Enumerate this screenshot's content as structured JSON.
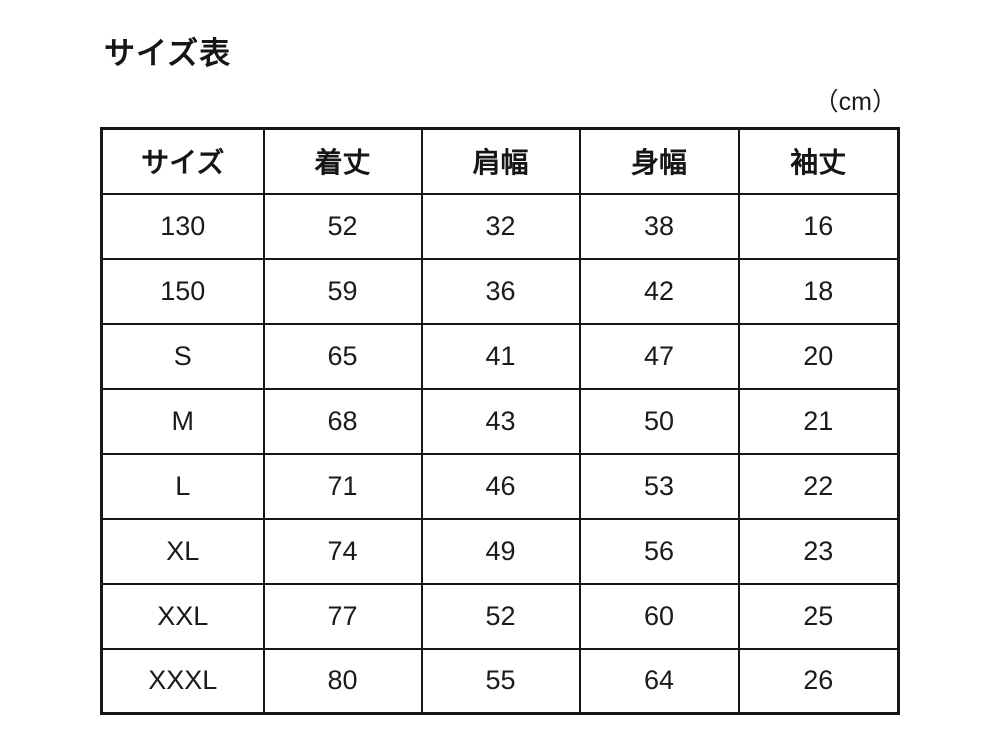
{
  "page": {
    "title": "サイズ表",
    "unit_label": "（cm）"
  },
  "chart_data": {
    "type": "table",
    "title": "サイズ表",
    "unit": "cm",
    "columns": [
      "サイズ",
      "着丈",
      "肩幅",
      "身幅",
      "袖丈"
    ],
    "rows": [
      [
        "130",
        "52",
        "32",
        "38",
        "16"
      ],
      [
        "150",
        "59",
        "36",
        "42",
        "18"
      ],
      [
        "S",
        "65",
        "41",
        "47",
        "20"
      ],
      [
        "M",
        "68",
        "43",
        "50",
        "21"
      ],
      [
        "L",
        "71",
        "46",
        "53",
        "22"
      ],
      [
        "XL",
        "74",
        "49",
        "56",
        "23"
      ],
      [
        "XXL",
        "77",
        "52",
        "60",
        "25"
      ],
      [
        "XXXL",
        "80",
        "55",
        "64",
        "26"
      ]
    ]
  }
}
